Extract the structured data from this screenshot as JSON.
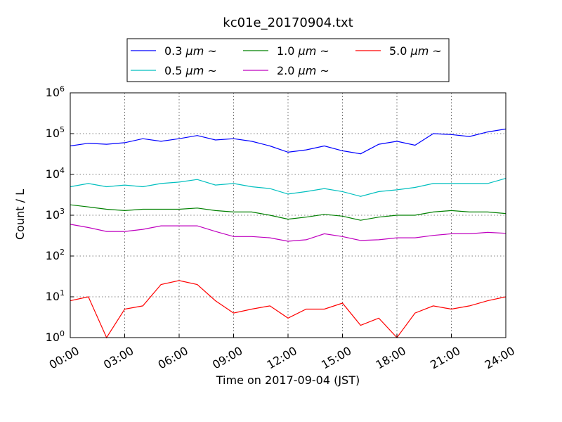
{
  "chart_data": {
    "type": "line",
    "title": "kc01e_20170904.txt",
    "xlabel": "Time on 2017-09-04 (JST)",
    "ylabel": "Count / L",
    "yscale": "log",
    "grid": true,
    "legend_position": "top-center",
    "xlim": [
      "00:00",
      "24:00"
    ],
    "ylim": [
      1,
      1000000
    ],
    "x_ticks": [
      "00:00",
      "03:00",
      "06:00",
      "09:00",
      "12:00",
      "15:00",
      "18:00",
      "21:00",
      "24:00"
    ],
    "y_ticks": [
      {
        "base": "10",
        "exp": "0"
      },
      {
        "base": "10",
        "exp": "1"
      },
      {
        "base": "10",
        "exp": "2"
      },
      {
        "base": "10",
        "exp": "3"
      },
      {
        "base": "10",
        "exp": "4"
      },
      {
        "base": "10",
        "exp": "5"
      },
      {
        "base": "10",
        "exp": "6"
      }
    ],
    "x": [
      "00:00",
      "01:00",
      "02:00",
      "03:00",
      "04:00",
      "05:00",
      "06:00",
      "07:00",
      "08:00",
      "09:00",
      "10:00",
      "11:00",
      "12:00",
      "13:00",
      "14:00",
      "15:00",
      "16:00",
      "17:00",
      "18:00",
      "19:00",
      "20:00",
      "21:00",
      "22:00",
      "23:00",
      "24:00"
    ],
    "series": [
      {
        "name": "0.3",
        "unit": "μm",
        "suffix": "~",
        "color": "#0000ff",
        "values": [
          50000,
          58000,
          55000,
          60000,
          75000,
          65000,
          75000,
          90000,
          70000,
          75000,
          65000,
          50000,
          35000,
          40000,
          50000,
          38000,
          32000,
          55000,
          65000,
          52000,
          100000,
          95000,
          85000,
          110000,
          130000
        ]
      },
      {
        "name": "0.5",
        "unit": "μm",
        "suffix": "~",
        "color": "#00bfbf",
        "values": [
          5000,
          6000,
          5000,
          5500,
          5000,
          6000,
          6500,
          7500,
          5500,
          6000,
          5000,
          4500,
          3300,
          3800,
          4500,
          3800,
          2900,
          3800,
          4200,
          4800,
          6000,
          6000,
          6000,
          6000,
          8000
        ]
      },
      {
        "name": "1.0",
        "unit": "μm",
        "suffix": "~",
        "color": "#008000",
        "values": [
          1800,
          1600,
          1400,
          1300,
          1400,
          1400,
          1400,
          1500,
          1300,
          1200,
          1200,
          1000,
          800,
          900,
          1050,
          950,
          750,
          900,
          1000,
          1000,
          1200,
          1300,
          1200,
          1200,
          1100
        ]
      },
      {
        "name": "2.0",
        "unit": "μm",
        "suffix": "~",
        "color": "#bf00bf",
        "values": [
          600,
          500,
          400,
          400,
          450,
          550,
          550,
          550,
          400,
          300,
          300,
          280,
          230,
          250,
          350,
          300,
          240,
          250,
          280,
          280,
          320,
          350,
          350,
          380,
          360
        ]
      },
      {
        "name": "5.0",
        "unit": "μm",
        "suffix": "~",
        "color": "#ff0000",
        "values": [
          8,
          10,
          1,
          5,
          6,
          20,
          25,
          20,
          8,
          4,
          5,
          6,
          3,
          5,
          5,
          7,
          2,
          3,
          1,
          4,
          6,
          5,
          6,
          8,
          10
        ]
      }
    ]
  }
}
